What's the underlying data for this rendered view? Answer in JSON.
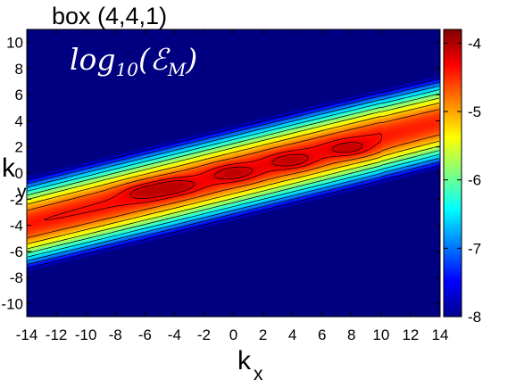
{
  "chart_data": {
    "type": "heatmap",
    "title": "box (4,4,1)",
    "annotation": {
      "base": "log",
      "subscript": "10",
      "open": "(",
      "symbol": "ℰ",
      "symbol_subscript": "M",
      "close": ")"
    },
    "xlabel": {
      "main": "k",
      "sub": "x"
    },
    "ylabel": {
      "main": "k",
      "sub": "y"
    },
    "xlim": [
      -14,
      14
    ],
    "ylim": [
      -11,
      11
    ],
    "xticks": [
      -14,
      -12,
      -10,
      -8,
      -6,
      -4,
      -2,
      0,
      2,
      4,
      6,
      8,
      10,
      12,
      14
    ],
    "yticks": [
      -10,
      -8,
      -6,
      -4,
      -2,
      0,
      2,
      4,
      6,
      8,
      10
    ],
    "colorbar": {
      "range": [
        -8,
        -3.8
      ],
      "ticks": [
        -8,
        -7,
        -6,
        -5,
        -4
      ],
      "colormap": "jet",
      "tick_labels": [
        "-8",
        "-7",
        "-6",
        "-5",
        "-4"
      ]
    },
    "field_model": {
      "description_values_in_log10_units": true,
      "ridge_slope": 0.28,
      "peak_value": -4.05,
      "peaks": [
        {
          "kx": -6,
          "ky": -1.4,
          "value": -4.1
        },
        {
          "kx": -4,
          "ky": -1.0,
          "value": -4.05
        },
        {
          "kx": 0,
          "ky": 0.0,
          "value": -4.15
        },
        {
          "kx": 4,
          "ky": 0.9,
          "value": -4.1
        },
        {
          "kx": 8,
          "ky": 1.8,
          "value": -4.3
        }
      ],
      "floor_value": -8.0
    },
    "contour_levels": [
      -7.6,
      -7.2,
      -6.8,
      -6.4,
      -6.0,
      -5.6,
      -5.2,
      -4.8,
      -4.4,
      -4.2
    ],
    "grid": false,
    "legend": "none"
  }
}
